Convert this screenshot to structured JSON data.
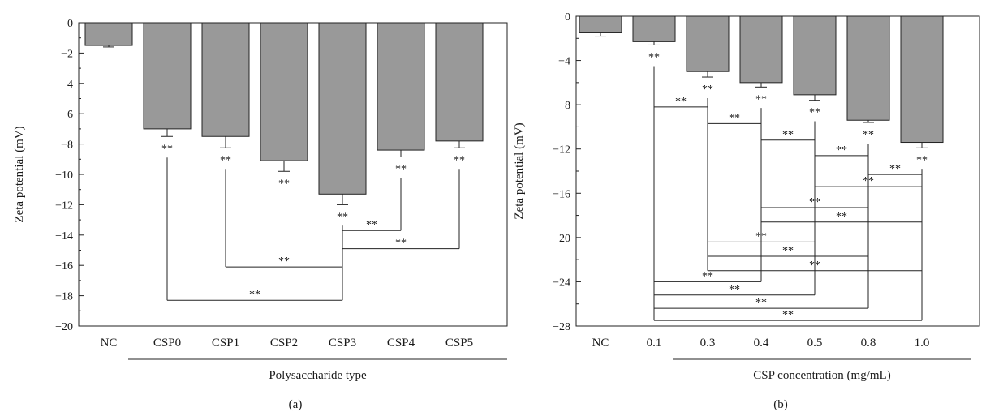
{
  "chart_data": [
    {
      "type": "bar",
      "panel_label": "(a)",
      "title": "",
      "xlabel": "Polysaccharide type",
      "ylabel": "Zeta potential (mV)",
      "ylim": [
        -20,
        0
      ],
      "yticks": [
        0,
        -2,
        -4,
        -6,
        -8,
        -10,
        -12,
        -14,
        -16,
        -18,
        -20
      ],
      "ytick_labels": [
        "0",
        "−2",
        "−4",
        "−6",
        "−8",
        "−10",
        "−12",
        "−14",
        "−16",
        "−18",
        "−20"
      ],
      "categories": [
        "NC",
        "CSP0",
        "CSP1",
        "CSP2",
        "CSP3",
        "CSP4",
        "CSP5"
      ],
      "values": [
        -1.5,
        -7.0,
        -7.5,
        -9.1,
        -11.3,
        -8.4,
        -7.8
      ],
      "errors": [
        0.1,
        0.5,
        0.75,
        0.7,
        0.7,
        0.45,
        0.45
      ],
      "bar_color": "#999999",
      "significance_label": "**",
      "bar_marks": [
        "",
        "**",
        "**",
        "**",
        "**",
        "**",
        "**"
      ],
      "comparisons": [
        {
          "from": "CSP3",
          "to": "CSP4",
          "y": -13.7,
          "label": "**"
        },
        {
          "from": "CSP3",
          "to": "CSP5",
          "y": -14.9,
          "label": "**"
        },
        {
          "from": "CSP1",
          "to": "CSP3",
          "y": -16.1,
          "label": "**"
        },
        {
          "from": "CSP0",
          "to": "CSP3",
          "y": -18.3,
          "label": "**"
        }
      ],
      "grid": false,
      "legend": "none"
    },
    {
      "type": "bar",
      "panel_label": "(b)",
      "title": "",
      "xlabel": "CSP concentration (mg/mL)",
      "ylabel": "Zeta potential (mV)",
      "ylim": [
        -28,
        0
      ],
      "yticks": [
        0,
        -4,
        -8,
        -12,
        -16,
        -20,
        -24,
        -28
      ],
      "ytick_labels": [
        "0",
        "−4",
        "−8",
        "−12",
        "−16",
        "−20",
        "−24",
        "−28"
      ],
      "categories": [
        "NC",
        "0.1",
        "0.3",
        "0.4",
        "0.5",
        "0.8",
        "1.0"
      ],
      "values": [
        -1.5,
        -2.3,
        -5.0,
        -6.0,
        -7.1,
        -9.4,
        -11.4
      ],
      "errors": [
        0.3,
        0.3,
        0.5,
        0.4,
        0.5,
        0.2,
        0.5
      ],
      "bar_color": "#999999",
      "significance_label": "**",
      "bar_marks": [
        "",
        "**",
        "**",
        "**",
        "**",
        "**",
        "**"
      ],
      "comparisons": [
        {
          "from": "0.1",
          "to": "0.3",
          "y": -8.2,
          "label": "**"
        },
        {
          "from": "0.3",
          "to": "0.4",
          "y": -9.7,
          "label": "**"
        },
        {
          "from": "0.4",
          "to": "0.5",
          "y": -11.2,
          "label": "**"
        },
        {
          "from": "0.5",
          "to": "0.8",
          "y": -12.6,
          "label": "**"
        },
        {
          "from": "0.8",
          "to": "1.0",
          "y": -14.3,
          "label": "**"
        },
        {
          "from": "0.5",
          "to": "1.0",
          "y": -15.4,
          "label": "**"
        },
        {
          "from": "0.4",
          "to": "0.8",
          "y": -17.3,
          "label": "**"
        },
        {
          "from": "0.4",
          "to": "1.0",
          "y": -18.6,
          "label": "**"
        },
        {
          "from": "0.3",
          "to": "0.5",
          "y": -20.4,
          "label": "**"
        },
        {
          "from": "0.3",
          "to": "0.8",
          "y": -21.7,
          "label": "**"
        },
        {
          "from": "0.3",
          "to": "1.0",
          "y": -23.0,
          "label": "**"
        },
        {
          "from": "0.1",
          "to": "0.4",
          "y": -24.0,
          "label": "**"
        },
        {
          "from": "0.1",
          "to": "0.5",
          "y": -25.2,
          "label": "**"
        },
        {
          "from": "0.1",
          "to": "0.8",
          "y": -26.4,
          "label": "**"
        },
        {
          "from": "0.1",
          "to": "1.0",
          "y": -27.5,
          "label": "**"
        }
      ],
      "grid": false,
      "legend": "none"
    }
  ]
}
